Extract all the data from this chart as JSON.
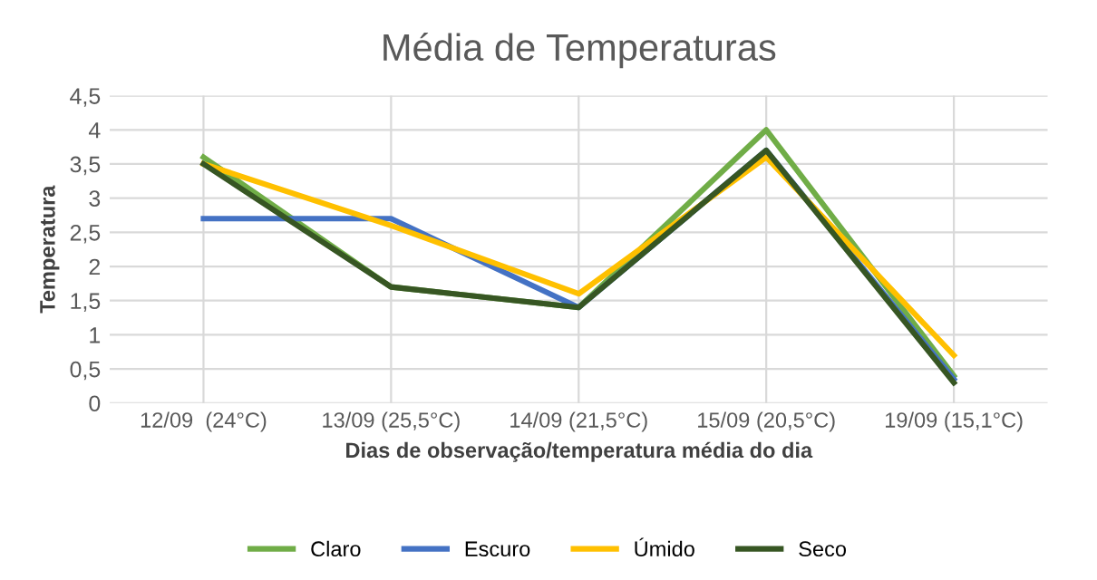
{
  "chart_data": {
    "type": "line",
    "title": "Média de Temperaturas",
    "xlabel": "Dias de observação/temperatura média do dia",
    "ylabel": "Temperatura",
    "categories": [
      "12/09  (24°C)",
      "13/09 (25,5°C)",
      "14/09 (21,5°C)",
      "15/09 (20,5°C)",
      "19/09 (15,1°C)"
    ],
    "series": [
      {
        "name": "Claro",
        "color": "#70ad47",
        "values": [
          3.6,
          1.7,
          1.4,
          4.0,
          0.4
        ]
      },
      {
        "name": "Escuro",
        "color": "#4472c4",
        "values": [
          2.7,
          2.7,
          1.4,
          3.7,
          0.35
        ]
      },
      {
        "name": "Úmido",
        "color": "#ffc000",
        "values": [
          3.5,
          2.6,
          1.6,
          3.6,
          0.7
        ]
      },
      {
        "name": "Seco",
        "color": "#375623",
        "values": [
          3.5,
          1.7,
          1.4,
          3.7,
          0.3
        ]
      }
    ],
    "ylim": [
      0,
      4.5
    ],
    "yticks": [
      0,
      {
        "value": 0.5,
        "label": "0,5"
      },
      1,
      {
        "value": 1.5,
        "label": "1,5"
      },
      2,
      {
        "value": 2.5,
        "label": "2,5"
      },
      3,
      {
        "value": 3.5,
        "label": "3,5"
      },
      4,
      {
        "value": 4.5,
        "label": "4,5"
      }
    ],
    "grid": true,
    "legend": "bottom",
    "marker": "none",
    "line_style": "solid"
  }
}
